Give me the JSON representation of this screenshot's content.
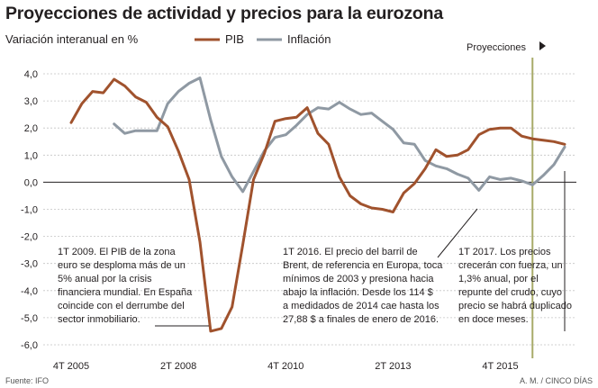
{
  "header": {
    "title": "Proyecciones de actividad y precios para la eurozona"
  },
  "chart_data": {
    "type": "line",
    "title": "Proyecciones de actividad y precios para la eurozona",
    "ylabel": "Variación interanual en %",
    "ylim": [
      -6,
      4.5
    ],
    "yticks": [
      "4,0",
      "3,0",
      "2,0",
      "1,0",
      "0,0",
      "-1,0",
      "-2,0",
      "-3,0",
      "-4,0",
      "-5,0",
      "-6,0"
    ],
    "ytick_values": [
      4,
      3,
      2,
      1,
      0,
      -1,
      -2,
      -3,
      -4,
      -5,
      -6
    ],
    "xlim": [
      0,
      46
    ],
    "xtick_labels": [
      "4T 2005",
      "2T 2008",
      "4T 2010",
      "2T 2013",
      "4T 2015"
    ],
    "xtick_positions": [
      0,
      10,
      20,
      30,
      40
    ],
    "projection_start": 43,
    "projection_label": "Proyecciones",
    "series": [
      {
        "name": "PIB",
        "color": "#a0522d",
        "x": [
          0,
          1,
          2,
          3,
          4,
          5,
          6,
          7,
          8,
          9,
          10,
          11,
          12,
          13,
          14,
          15,
          16,
          17,
          18,
          19,
          20,
          21,
          22,
          23,
          24,
          25,
          26,
          27,
          28,
          29,
          30,
          31,
          32,
          33,
          34,
          35,
          36,
          37,
          38,
          39,
          40,
          41,
          42,
          43,
          44,
          45,
          46
        ],
        "values": [
          2.2,
          2.9,
          3.35,
          3.3,
          3.8,
          3.55,
          3.15,
          2.95,
          2.4,
          2.05,
          1.15,
          0.1,
          -2.2,
          -5.5,
          -5.4,
          -4.6,
          -2.3,
          0.1,
          1.05,
          2.25,
          2.35,
          2.4,
          2.75,
          1.8,
          1.4,
          0.2,
          -0.5,
          -0.8,
          -0.95,
          -1.0,
          -1.1,
          -0.4,
          -0.05,
          0.5,
          1.2,
          0.95,
          1.0,
          1.2,
          1.75,
          1.95,
          2.0,
          2.0,
          1.7,
          1.6,
          1.55,
          1.5,
          1.4
        ]
      },
      {
        "name": "Inflación",
        "color": "#8f99a3",
        "x": [
          4,
          5,
          6,
          7,
          8,
          9,
          10,
          11,
          12,
          13,
          14,
          15,
          16,
          17,
          18,
          19,
          20,
          21,
          22,
          23,
          24,
          25,
          26,
          27,
          28,
          29,
          30,
          31,
          32,
          33,
          34,
          35,
          36,
          37,
          38,
          39,
          40,
          41,
          42,
          43,
          44,
          45,
          46
        ],
        "values": [
          2.15,
          1.8,
          1.9,
          1.9,
          1.9,
          2.9,
          3.35,
          3.65,
          3.85,
          2.3,
          0.95,
          0.2,
          -0.35,
          0.4,
          1.15,
          1.65,
          1.75,
          2.1,
          2.5,
          2.75,
          2.7,
          2.95,
          2.7,
          2.5,
          2.55,
          2.25,
          1.95,
          1.45,
          1.4,
          0.8,
          0.6,
          0.5,
          0.3,
          0.15,
          -0.3,
          0.2,
          0.1,
          0.15,
          0.05,
          -0.1,
          0.25,
          0.65,
          1.3
        ]
      }
    ],
    "annotations": [
      {
        "id": "2009",
        "lines": [
          "1T 2009. El PIB de la zona",
          "euro se desploma más de un",
          "5% anual por la crisis",
          "financiera mundial. En España",
          "coincide con el derrumbe del",
          "sector inmobiliario."
        ]
      },
      {
        "id": "2016",
        "lines": [
          "1T 2016. El precio del barril de",
          "Brent, de referencia en Europa, toca",
          "mínimos de 2003 y presiona hacia",
          "abajo la inflación. Desde los 114 $",
          "a medidados de 2014 cae hasta los",
          "27,88 $ a finales de enero de 2016."
        ]
      },
      {
        "id": "2017",
        "lines": [
          "1T 2017. Los precios",
          "crecerán con fuerza, un",
          "1,3% anual, por el",
          "repunte del crudo, cuyo",
          "precio se habrá duplicado",
          "en doce meses."
        ]
      }
    ],
    "source": "Fuente: IFO",
    "credit": "A. M. / CINCO DÍAS"
  }
}
